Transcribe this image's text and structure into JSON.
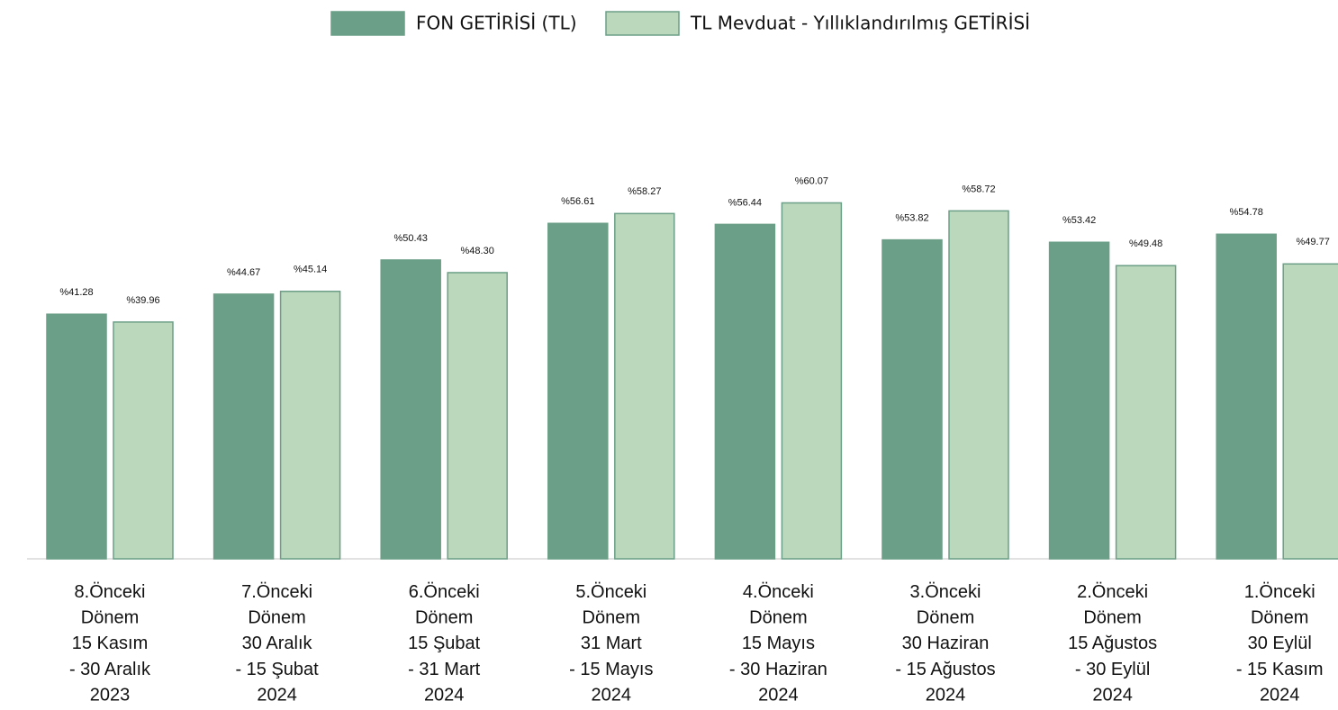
{
  "chart_data": {
    "type": "bar",
    "categories": [
      [
        "8.Önceki",
        "Dönem",
        "15 Kasım",
        "- 30 Aralık",
        "2023"
      ],
      [
        "7.Önceki",
        "Dönem",
        "30 Aralık",
        "- 15 Şubat",
        "2024"
      ],
      [
        "6.Önceki",
        "Dönem",
        "15 Şubat",
        "- 31 Mart",
        "2024"
      ],
      [
        "5.Önceki",
        "Dönem",
        "31 Mart",
        "- 15 Mayıs",
        "2024"
      ],
      [
        "4.Önceki",
        "Dönem",
        "15 Mayıs",
        "- 30 Haziran",
        "2024"
      ],
      [
        "3.Önceki",
        "Dönem",
        "30 Haziran",
        "- 15 Ağustos",
        "2024"
      ],
      [
        "2.Önceki",
        "Dönem",
        "15 Ağustos",
        "- 30 Eylül",
        "2024"
      ],
      [
        "1.Önceki",
        "Dönem",
        "30 Eylül",
        "- 15 Kasım",
        "2024"
      ]
    ],
    "series": [
      {
        "name": "FON GETİRİSİ (TL)",
        "color": "#6b9f87",
        "values": [
          41.28,
          44.67,
          50.43,
          56.61,
          56.44,
          53.82,
          53.42,
          54.78
        ],
        "value_labels": [
          "%41.28",
          "%44.67",
          "%50.43",
          "%56.61",
          "%56.44",
          "%53.82",
          "%53.42",
          "%54.78"
        ]
      },
      {
        "name": "TL Mevduat - Yıllıklandırılmış GETİRİSİ",
        "color": "#bcd8bc",
        "values": [
          39.96,
          45.14,
          48.3,
          58.27,
          60.07,
          58.72,
          49.48,
          49.77
        ],
        "value_labels": [
          "%39.96",
          "%45.14",
          "%48.30",
          "%58.27",
          "%60.07",
          "%58.72",
          "%49.48",
          "%49.77"
        ]
      }
    ],
    "ylim": [
      0,
      65
    ],
    "legend": "top"
  }
}
